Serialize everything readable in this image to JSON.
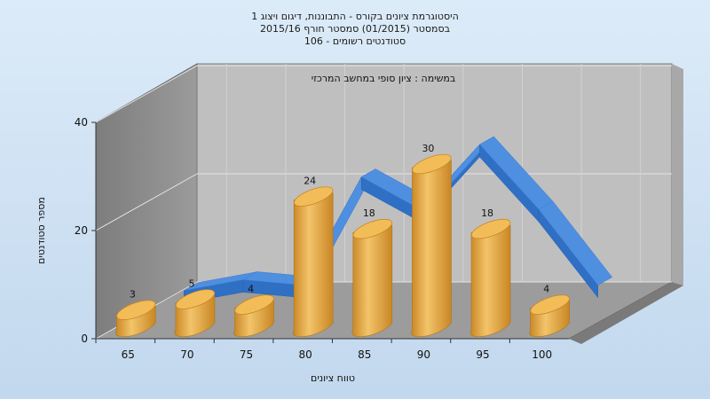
{
  "chart_data": {
    "type": "bar",
    "title_lines": [
      "היסטוגרמת ציונים בקורס - התבוננות, דיגום ויצוג 1",
      "בסמסטר  (01/2015)  סמסטר חורף 2015/16",
      "סטודנטים רשומים - 106"
    ],
    "annotation": "במשימה : ציון סופי במחשב המרכזי",
    "xlabel": "טווח ציונים",
    "ylabel": "מספר סטודנטים",
    "categories": [
      "65",
      "70",
      "75",
      "80",
      "85",
      "90",
      "95",
      "100"
    ],
    "series": [
      {
        "values": [
          3,
          5,
          4,
          24,
          18,
          30,
          18,
          4
        ]
      }
    ],
    "ylim": [
      0,
      40
    ],
    "yticks": [
      "0",
      "20",
      "40"
    ],
    "grid": true,
    "legend": "none",
    "colors": {
      "bar_side": "#e0a23a",
      "bar_top": "#f0c060",
      "ribbon": "#2f6fc4",
      "back_wall": "#bdbdbd",
      "side_wall": "#8c8c8c",
      "floor": "#9a9a9a",
      "background": "#cfe3f5"
    }
  }
}
